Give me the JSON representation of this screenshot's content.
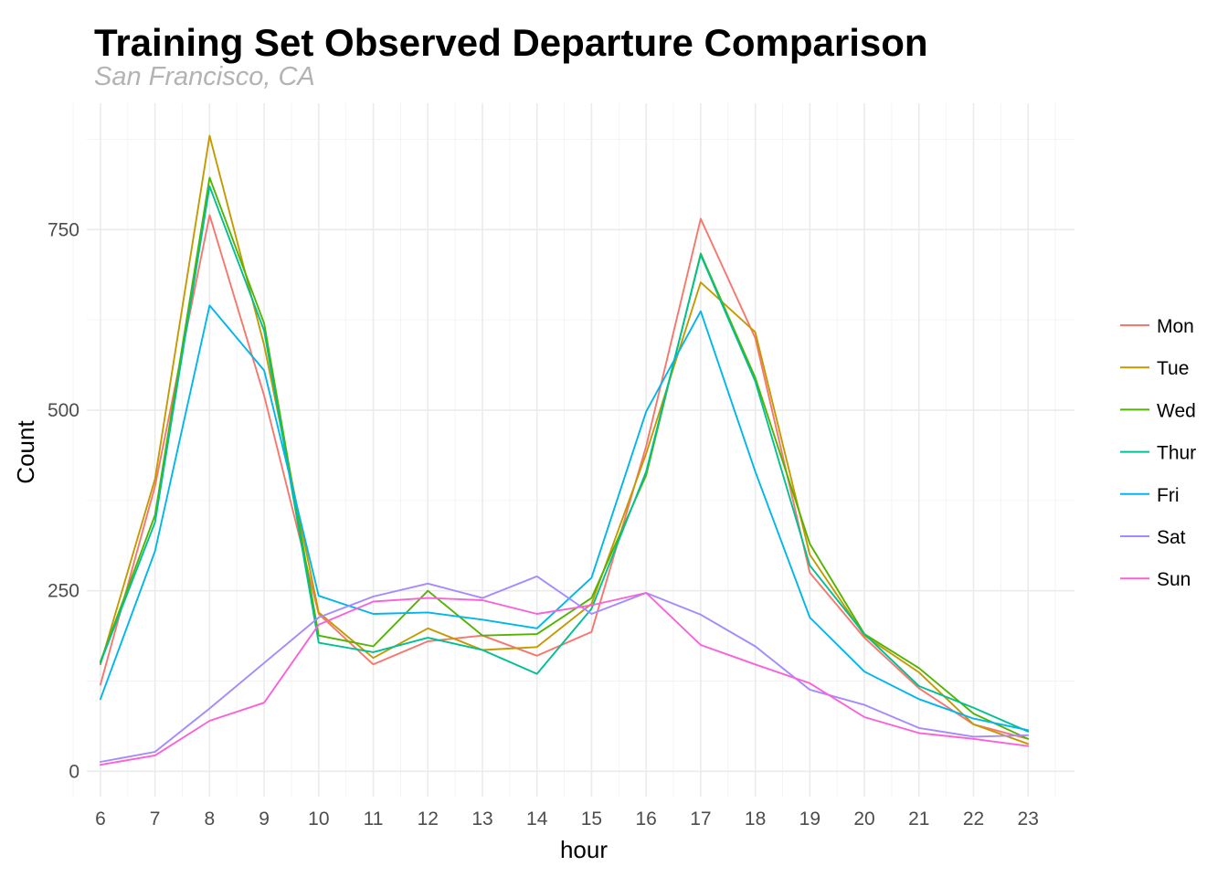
{
  "chart_data": {
    "type": "line",
    "title": "Training Set Observed Departure Comparison",
    "subtitle": "San Francisco, CA",
    "xlabel": "hour",
    "ylabel": "Count",
    "x": [
      6,
      7,
      8,
      9,
      10,
      11,
      12,
      13,
      14,
      15,
      16,
      17,
      18,
      19,
      20,
      21,
      22,
      23
    ],
    "x_tick_labels": [
      "6",
      "7",
      "8",
      "9",
      "10",
      "11",
      "12",
      "13",
      "14",
      "15",
      "16",
      "17",
      "18",
      "19",
      "20",
      "21",
      "22",
      "23"
    ],
    "y_ticks": [
      0,
      250,
      500,
      750
    ],
    "y_tick_labels": [
      "0",
      "250",
      "500",
      "750"
    ],
    "xlim": [
      5.75,
      23.85
    ],
    "ylim": [
      -35,
      925
    ],
    "grid": true,
    "legend_position": "right",
    "series": [
      {
        "name": "Mon",
        "color": "#F8766D",
        "values": [
          120,
          395,
          770,
          520,
          218,
          148,
          180,
          188,
          160,
          193,
          450,
          765,
          600,
          275,
          185,
          115,
          65,
          45
        ]
      },
      {
        "name": "Tue",
        "color": "#C49A00",
        "values": [
          148,
          405,
          880,
          590,
          220,
          157,
          198,
          168,
          172,
          232,
          440,
          677,
          608,
          300,
          188,
          137,
          65,
          38
        ]
      },
      {
        "name": "Wed",
        "color": "#53B400",
        "values": [
          152,
          355,
          822,
          620,
          188,
          173,
          250,
          188,
          190,
          240,
          410,
          717,
          545,
          315,
          190,
          143,
          80,
          45
        ]
      },
      {
        "name": "Thur",
        "color": "#00C094",
        "values": [
          150,
          345,
          810,
          610,
          178,
          165,
          185,
          168,
          135,
          225,
          415,
          715,
          540,
          285,
          190,
          118,
          88,
          55
        ]
      },
      {
        "name": "Fri",
        "color": "#00B6EB",
        "values": [
          100,
          305,
          645,
          555,
          243,
          218,
          220,
          210,
          198,
          268,
          498,
          637,
          415,
          213,
          138,
          100,
          73,
          57
        ]
      },
      {
        "name": "Sat",
        "color": "#A58AFF",
        "values": [
          13,
          27,
          87,
          150,
          213,
          242,
          260,
          240,
          270,
          218,
          247,
          217,
          173,
          113,
          92,
          60,
          48,
          50
        ]
      },
      {
        "name": "Sun",
        "color": "#FB61D7",
        "values": [
          9,
          22,
          70,
          95,
          203,
          235,
          240,
          237,
          218,
          230,
          247,
          175,
          148,
          122,
          75,
          53,
          45,
          35
        ]
      }
    ]
  }
}
